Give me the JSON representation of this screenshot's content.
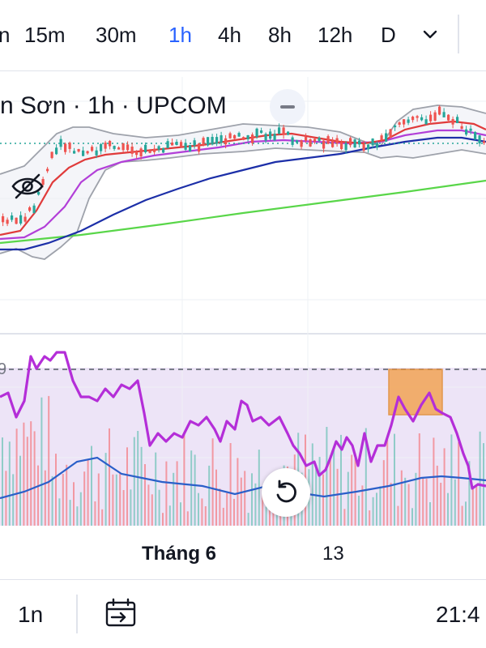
{
  "toolbar": {
    "intervals": [
      {
        "label": "n",
        "active": false
      },
      {
        "label": "15m",
        "active": false
      },
      {
        "label": "30m",
        "active": false
      },
      {
        "label": "1h",
        "active": true
      },
      {
        "label": "4h",
        "active": false
      },
      {
        "label": "8h",
        "active": false
      },
      {
        "label": "12h",
        "active": false
      },
      {
        "label": "D",
        "active": false
      }
    ],
    "chevron_icon": "chevron-down-icon",
    "active_color": "#2962ff"
  },
  "legend": {
    "title": "n Sơn · 1h · UPCOM",
    "collapse_icon": "minus-icon",
    "visibility_icon": "eye-off-icon"
  },
  "chart_data": [
    {
      "type": "candlestick",
      "panel": "price",
      "overlays": [
        {
          "kind": "bollinger-bands",
          "color": "#9ea2ab"
        },
        {
          "kind": "moving-average",
          "color": "#e03b3b"
        },
        {
          "kind": "moving-average",
          "color": "#b23fd8"
        },
        {
          "kind": "moving-average",
          "color": "#1c2fa8"
        },
        {
          "kind": "moving-average",
          "color": "#59d649"
        }
      ],
      "trend": "sharp rise at left, then a plateau near the top of the panel",
      "up_color": "#26a69a",
      "down_color": "#ef5350",
      "grid": true
    },
    {
      "type": "line",
      "panel": "oscillator",
      "tick_labels": [
        "9"
      ],
      "series": [
        {
          "color": "#b42ed8"
        },
        {
          "color": "#2a5fc9"
        }
      ],
      "volume_bars": {
        "up_color": "#7fc8c0",
        "down_color": "#f28b93"
      },
      "background_band": "#ede4f7",
      "highlight_box_color": "#f2a455",
      "dashed_level": true
    }
  ],
  "time_axis": {
    "labels": [
      {
        "text": "Tháng 6",
        "bold": true
      },
      {
        "text": "13",
        "bold": false
      }
    ]
  },
  "bottom_bar": {
    "range_label": "1n",
    "date_range_icon": "calendar-range-icon",
    "clock": "21:4"
  },
  "buttons": {
    "reset_icon": "reset-icon"
  }
}
